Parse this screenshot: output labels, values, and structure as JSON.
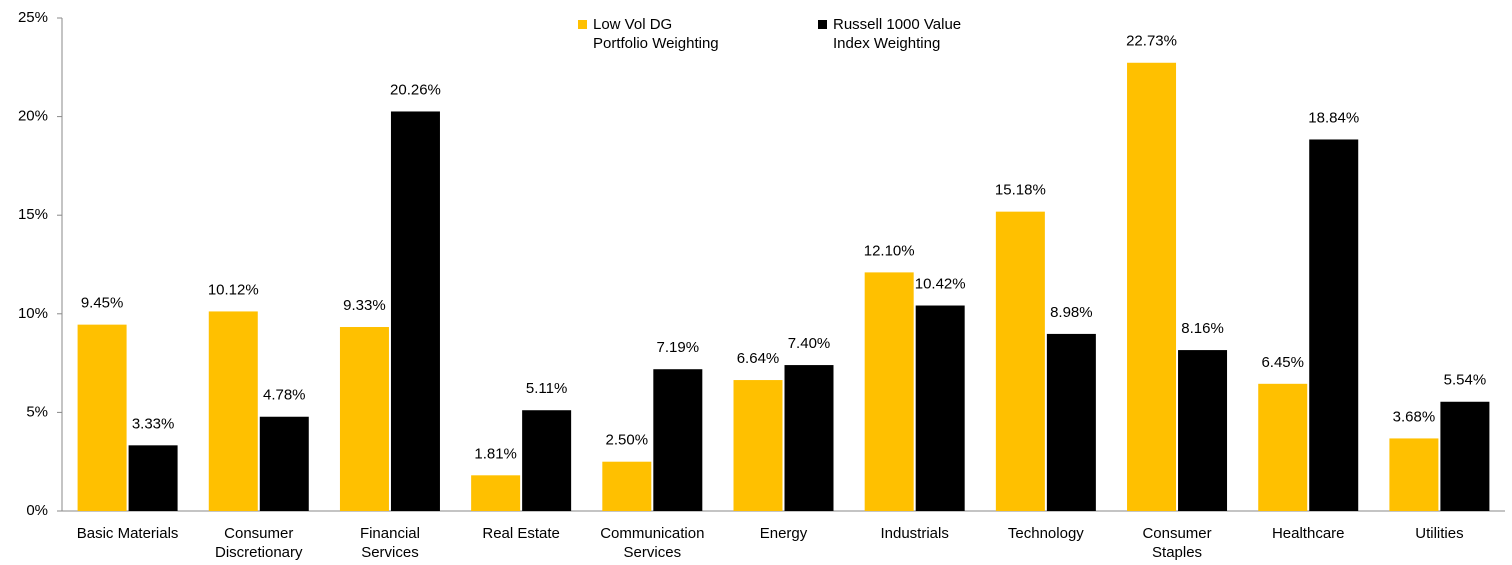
{
  "chart_data": {
    "type": "bar",
    "categories": [
      "Basic Materials",
      "Consumer\nDiscretionary",
      "Financial\nServices",
      "Real Estate",
      "Communication\nServices",
      "Energy",
      "Industrials",
      "Technology",
      "Consumer\nStaples",
      "Healthcare",
      "Utilities"
    ],
    "series": [
      {
        "name": "Low Vol DG\nPortfolio Weighting",
        "color": "#ffc000",
        "values": [
          9.45,
          10.12,
          9.33,
          1.81,
          2.5,
          6.64,
          12.1,
          15.18,
          22.73,
          6.45,
          3.68
        ],
        "value_labels": [
          "9.45%",
          "10.12%",
          "9.33%",
          "1.81%",
          "2.50%",
          "6.64%",
          "12.10%",
          "15.18%",
          "22.73%",
          "6.45%",
          "3.68%"
        ]
      },
      {
        "name": "Russell 1000 Value\nIndex Weighting",
        "color": "#000000",
        "values": [
          3.33,
          4.78,
          20.26,
          5.11,
          7.19,
          7.4,
          10.42,
          8.98,
          8.16,
          18.84,
          5.54
        ],
        "value_labels": [
          "3.33%",
          "4.78%",
          "20.26%",
          "5.11%",
          "7.19%",
          "7.40%",
          "10.42%",
          "8.98%",
          "8.16%",
          "18.84%",
          "5.54%"
        ]
      }
    ],
    "ylim": [
      0,
      25
    ],
    "yticks": [
      {
        "value": 0,
        "label": "0%"
      },
      {
        "value": 5,
        "label": "5%"
      },
      {
        "value": 10,
        "label": "10%"
      },
      {
        "value": 15,
        "label": "15%"
      },
      {
        "value": 20,
        "label": "20%"
      },
      {
        "value": 25,
        "label": "25%"
      }
    ],
    "grid": false,
    "legend": "top"
  }
}
